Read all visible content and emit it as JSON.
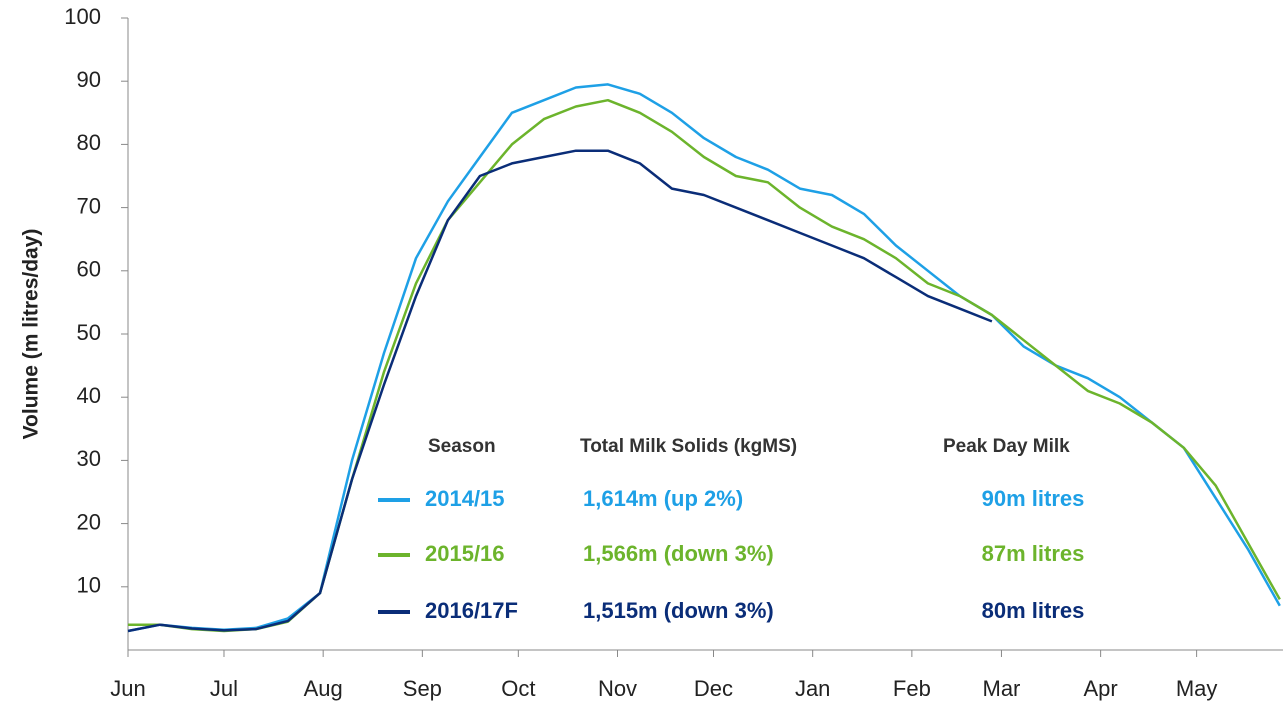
{
  "chart_data": {
    "type": "line",
    "y_label": "Volume (m litres/day)",
    "x": [
      0,
      10,
      20,
      30,
      40,
      50,
      60,
      70,
      80,
      90,
      100,
      110,
      120,
      130,
      140,
      150,
      160,
      170,
      180,
      190,
      200,
      210,
      220,
      230,
      240,
      250,
      260,
      270,
      280,
      290,
      300,
      310,
      320,
      330,
      340,
      350,
      360
    ],
    "xlim": [
      0,
      361
    ],
    "xticks": [
      {
        "value": 0,
        "label": "Jun"
      },
      {
        "value": 30,
        "label": "Jul"
      },
      {
        "value": 61,
        "label": "Aug"
      },
      {
        "value": 92,
        "label": "Sep"
      },
      {
        "value": 122,
        "label": "Oct"
      },
      {
        "value": 153,
        "label": "Nov"
      },
      {
        "value": 183,
        "label": "Dec"
      },
      {
        "value": 214,
        "label": "Jan"
      },
      {
        "value": 245,
        "label": "Feb"
      },
      {
        "value": 273,
        "label": "Mar"
      },
      {
        "value": 304,
        "label": "Apr"
      },
      {
        "value": 334,
        "label": "May"
      }
    ],
    "ylim": [
      0,
      100
    ],
    "yticks": [
      10,
      20,
      30,
      40,
      50,
      60,
      70,
      80,
      90,
      100
    ],
    "series": [
      {
        "name": "2014/15",
        "color": "#1ea0e6",
        "values": [
          3,
          4,
          3.5,
          3.2,
          3.5,
          5,
          9,
          30,
          47,
          62,
          71,
          78,
          85,
          87,
          89,
          89.5,
          88,
          85,
          81,
          78,
          76,
          73,
          72,
          69,
          64,
          60,
          56,
          53,
          48,
          45,
          43,
          40,
          36,
          32,
          24,
          16,
          7
        ]
      },
      {
        "name": "2015/16",
        "color": "#6cb42c",
        "values": [
          4,
          4,
          3.3,
          3,
          3.3,
          4.5,
          9,
          27,
          44,
          58,
          68,
          74,
          80,
          84,
          86,
          87,
          85,
          82,
          78,
          75,
          74,
          70,
          67,
          65,
          62,
          58,
          56,
          53,
          49,
          45,
          41,
          39,
          36,
          32,
          26,
          17,
          8
        ]
      },
      {
        "name": "2016/17F",
        "color": "#0a2d78",
        "values": [
          3,
          4,
          3.4,
          3.1,
          3.3,
          4.6,
          9,
          27,
          42,
          56,
          68,
          75,
          77,
          78,
          79,
          79,
          77,
          73,
          72,
          70,
          68,
          66,
          64,
          62,
          59,
          56,
          54,
          52,
          null,
          null,
          null,
          null,
          null,
          null,
          null,
          null,
          null
        ]
      }
    ],
    "legend_table": {
      "headers": [
        "Season",
        "Total Milk Solids (kgMS)",
        "Peak Day Milk"
      ],
      "rows": [
        [
          "1,614m (up 2%)",
          "90m litres"
        ],
        [
          "1,566m (down 3%)",
          "87m litres"
        ],
        [
          "1,515m (down 3%)",
          "80m litres"
        ]
      ]
    }
  }
}
